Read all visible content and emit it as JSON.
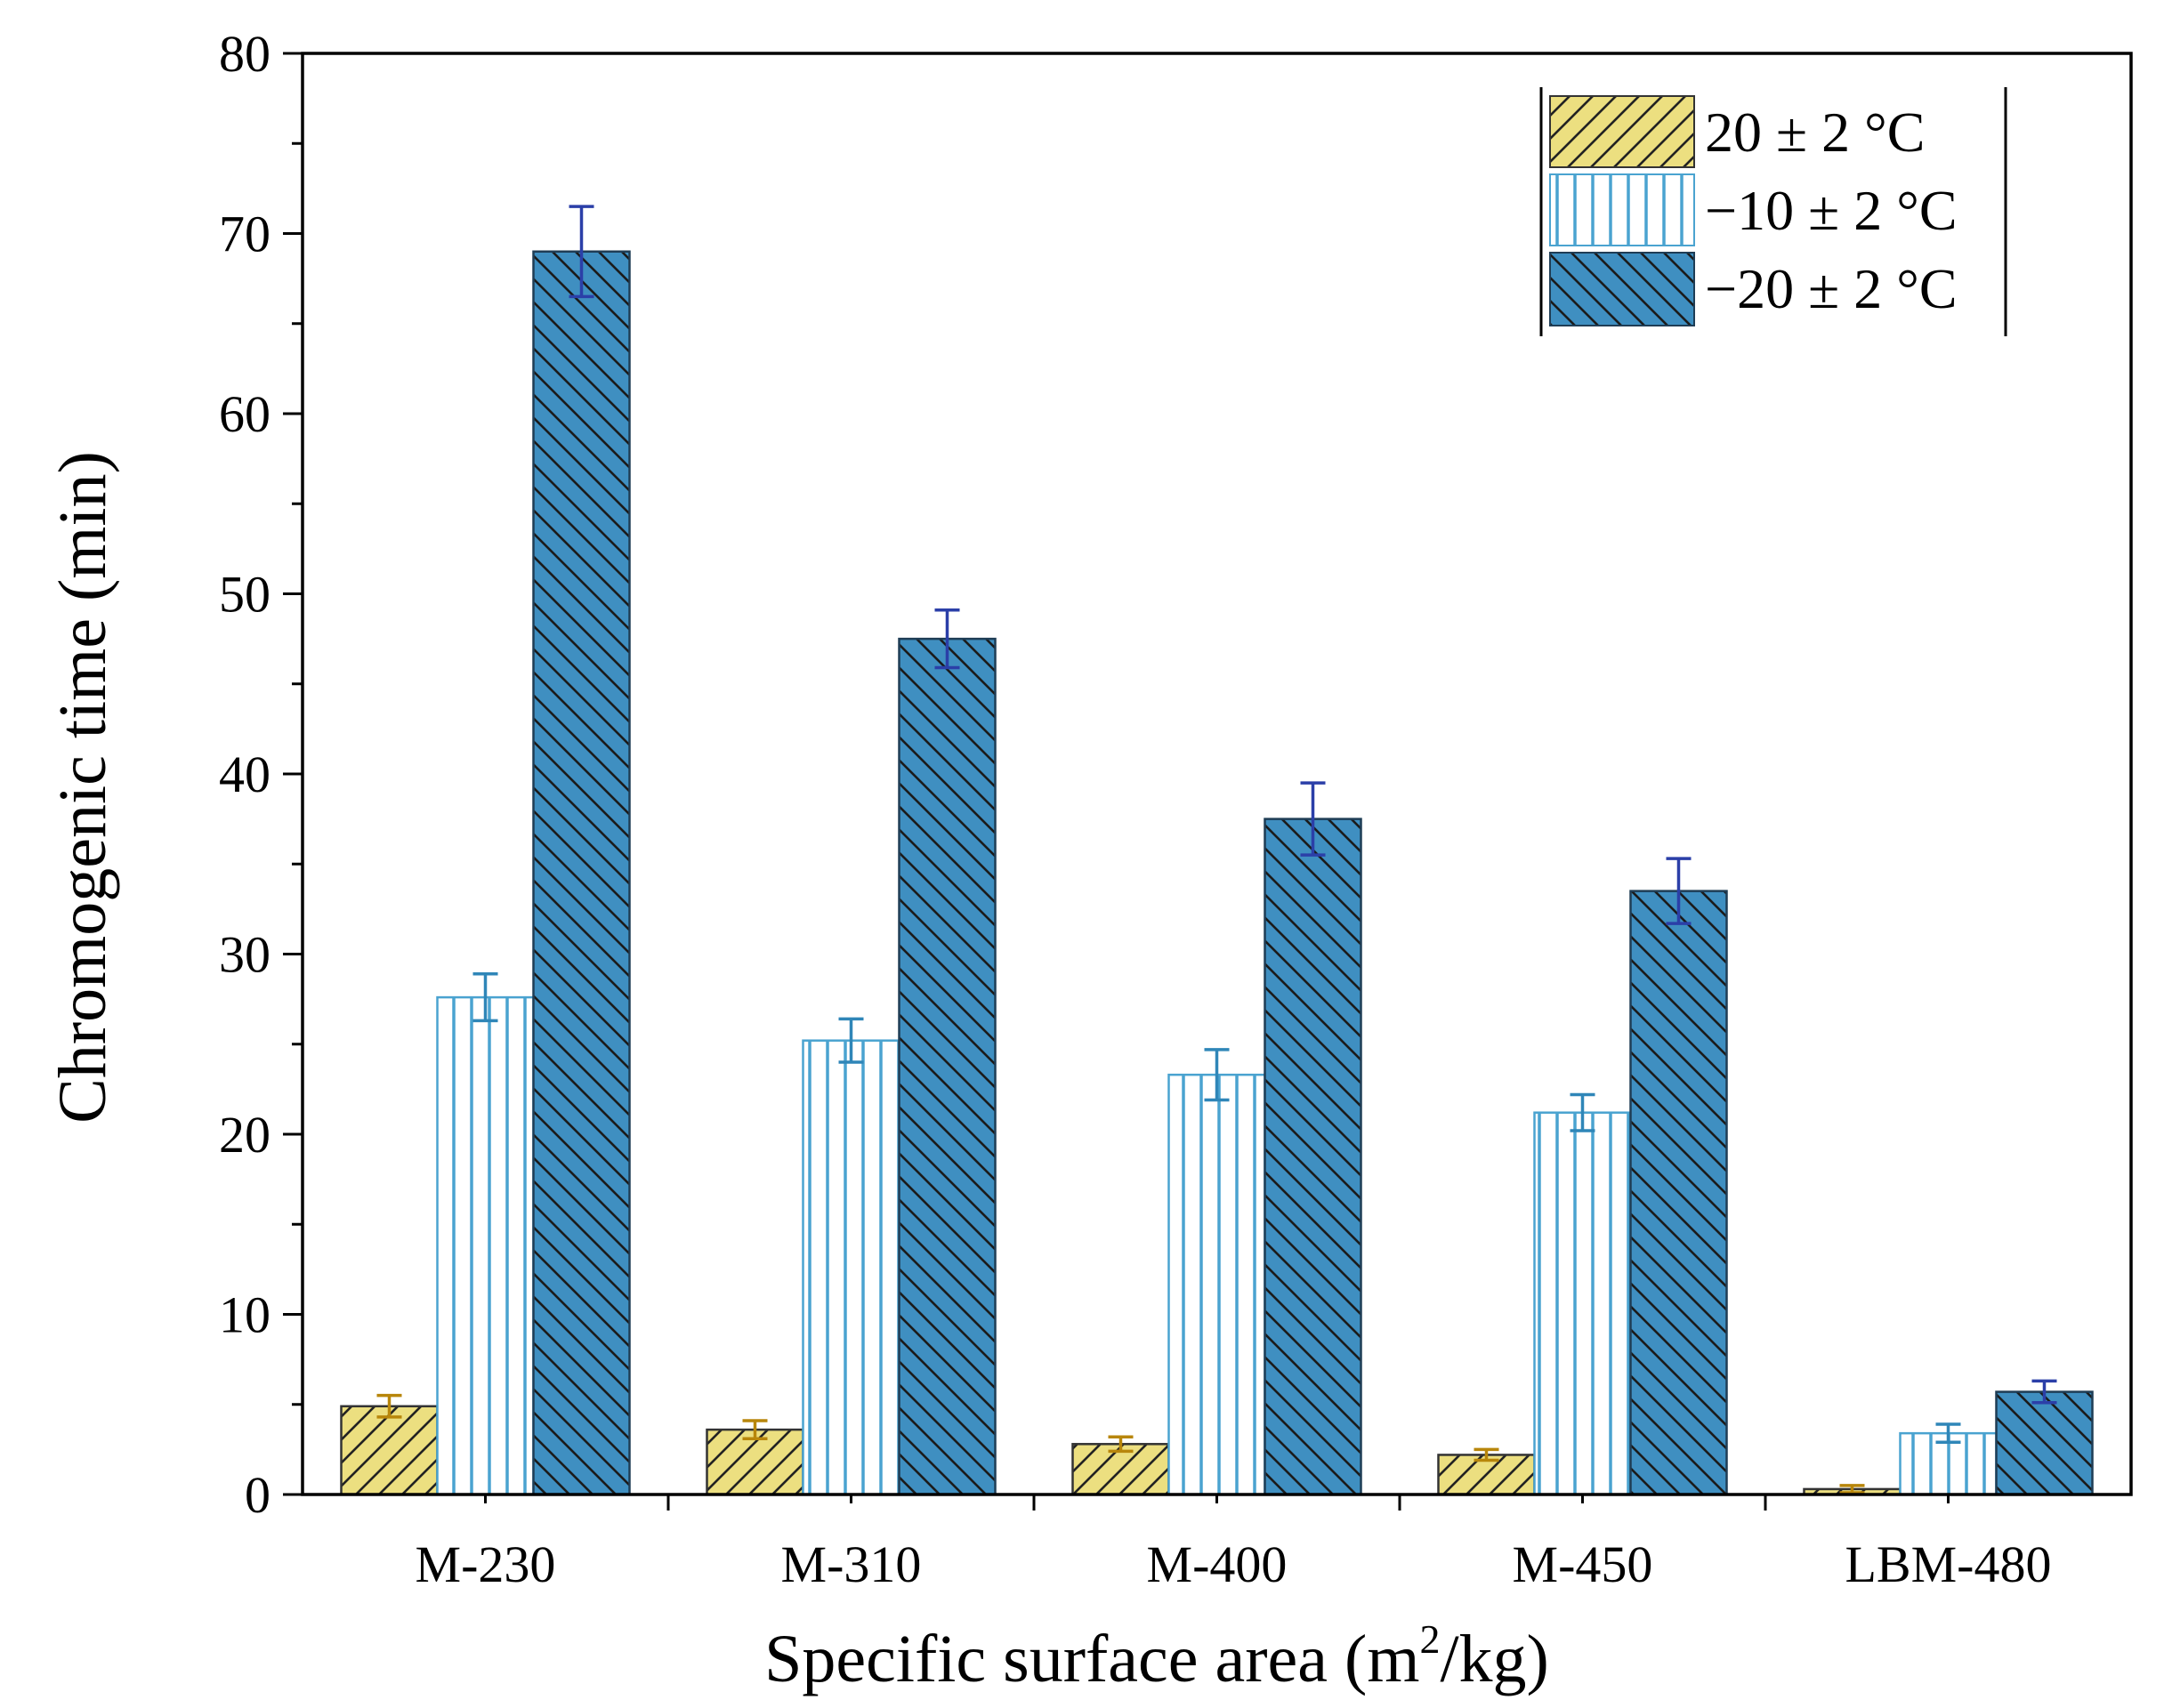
{
  "chart_data": {
    "type": "bar",
    "title": "",
    "xlabel": "Specific surface area (m",
    "xlabel_sup": "2",
    "xlabel_tail": "/kg)",
    "ylabel": "Chromogenic time (min)",
    "ylim": [
      0,
      80
    ],
    "yticks": [
      0,
      10,
      20,
      30,
      40,
      50,
      60,
      70,
      80
    ],
    "ytick_labels": [
      "0",
      "10",
      "20",
      "30",
      "40",
      "50",
      "60",
      "70",
      "80"
    ],
    "categories": [
      "M-230",
      "M-310",
      "M-400",
      "M-450",
      "LBM-480"
    ],
    "legend_position": "top-right",
    "grid": false,
    "series": [
      {
        "name": "20 ± 2 °C",
        "values": [
          4.9,
          3.6,
          2.8,
          2.2,
          0.3
        ],
        "errors": [
          0.6,
          0.5,
          0.4,
          0.3,
          0.2
        ],
        "fill": "#ecdf80",
        "hatch": "forward-diagonal",
        "hatch_color": "#222222",
        "stroke": "#333333",
        "error_color": "#b8860b"
      },
      {
        "name": "−10 ± 2 °C",
        "values": [
          27.6,
          25.2,
          23.3,
          21.2,
          3.4
        ],
        "errors": [
          1.3,
          1.2,
          1.4,
          1.0,
          0.5
        ],
        "fill": "#ffffff",
        "hatch": "vertical",
        "hatch_color": "#4aa3d0",
        "stroke": "#4aa3d0",
        "error_color": "#2f86b8"
      },
      {
        "name": "−20 ± 2 °C",
        "values": [
          69.0,
          47.5,
          37.5,
          33.5,
          5.7
        ],
        "errors": [
          2.5,
          1.6,
          2.0,
          1.8,
          0.6
        ],
        "fill": "#3f8fc1",
        "hatch": "back-diagonal",
        "hatch_color": "#1b1b1b",
        "stroke": "#1f3d55",
        "error_color": "#2b3fa8"
      }
    ]
  }
}
